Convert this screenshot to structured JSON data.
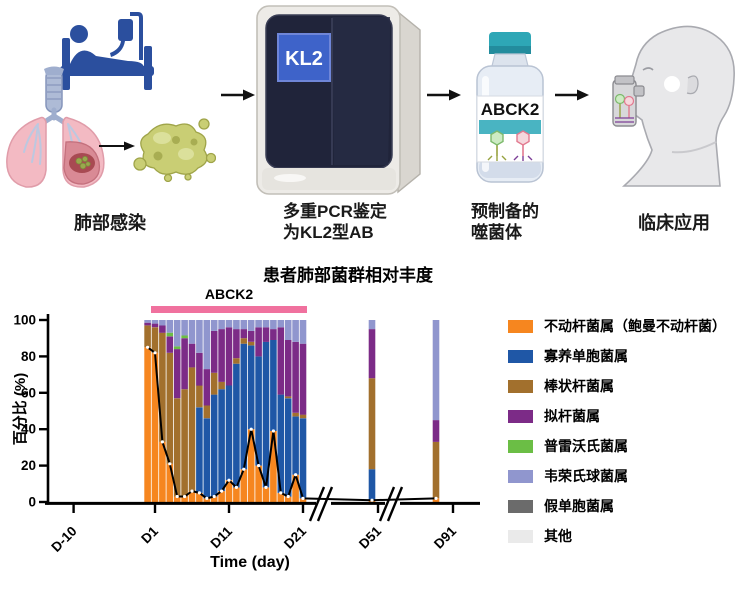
{
  "workflow": {
    "step1_caption": "肺部感染",
    "step2_caption_line1": "多重PCR鉴定",
    "step2_caption_line2": "为KL2型AB",
    "machine_screen_text": "KL2",
    "step3_caption_line1": "预制备的",
    "step3_caption_line2": "噬菌体",
    "vial_label_text": "ABCK2",
    "step4_caption": "临床应用"
  },
  "chart_data": {
    "type": "bar",
    "subtype": "stacked-percent-bars-with-line-overlay",
    "title": "患者肺部菌群相对丰度",
    "xlabel": "Time (day)",
    "ylabel": "百分比 (%)",
    "ylim": [
      0,
      100
    ],
    "yticks": [
      0,
      20,
      40,
      60,
      80,
      100
    ],
    "xticks": [
      {
        "label": "D-10",
        "day": -10
      },
      {
        "label": "D1",
        "day": 1
      },
      {
        "label": "D11",
        "day": 11
      },
      {
        "label": "D21",
        "day": 21
      },
      {
        "label": "D51",
        "day": 51
      },
      {
        "label": "D91",
        "day": 91
      }
    ],
    "axis_breaks": [
      {
        "between": [
          "D21",
          "D51"
        ]
      },
      {
        "between": [
          "D51",
          "D91"
        ]
      }
    ],
    "grid": false,
    "legend_position": "right",
    "treatment_band": {
      "label": "ABCK2",
      "color": "#F0719E",
      "start_day": 1,
      "end_day": 21
    },
    "line_overlay": {
      "follows_series": "acinetobacter",
      "color": "#000000",
      "marker_color": "#FFFFFF"
    },
    "series": [
      {
        "key": "acinetobacter",
        "label": "不动杆菌属（鲍曼不动杆菌）",
        "color": "#F6861F"
      },
      {
        "key": "stenotrophomonas",
        "label": "寡养单胞菌属",
        "color": "#1F57A6"
      },
      {
        "key": "corynebacterium",
        "label": "棒状杆菌属",
        "color": "#A2702D"
      },
      {
        "key": "bacteroides",
        "label": "拟杆菌属",
        "color": "#7C2B87"
      },
      {
        "key": "prevotella",
        "label": "普雷沃氏菌属",
        "color": "#6BBE45"
      },
      {
        "key": "veillonella",
        "label": "韦荣氏球菌属",
        "color": "#9096CE"
      },
      {
        "key": "pseudomonas",
        "label": "假单胞菌属",
        "color": "#6B6B6B"
      },
      {
        "key": "other",
        "label": "其他",
        "color": "#EAEAEA"
      }
    ],
    "bars": [
      {
        "day": 0,
        "stack": [
          85,
          0,
          12,
          1.5,
          0,
          1.5,
          0,
          0
        ]
      },
      {
        "day": 1,
        "stack": [
          82,
          0,
          14,
          2,
          0,
          2,
          0,
          0
        ]
      },
      {
        "day": 2,
        "stack": [
          33,
          0,
          60,
          4,
          0,
          3,
          0,
          0
        ]
      },
      {
        "day": 3,
        "stack": [
          21,
          0,
          61,
          9,
          2,
          7,
          0,
          0
        ]
      },
      {
        "day": 4,
        "stack": [
          3,
          0,
          54,
          27,
          1.5,
          14.5,
          0,
          0
        ]
      },
      {
        "day": 5,
        "stack": [
          3,
          0,
          59,
          28,
          1.5,
          8.5,
          0,
          0
        ]
      },
      {
        "day": 6,
        "stack": [
          6,
          0,
          68,
          13,
          0,
          13,
          0,
          0
        ]
      },
      {
        "day": 7,
        "stack": [
          5,
          47,
          12,
          18,
          0,
          18,
          0,
          0
        ]
      },
      {
        "day": 8,
        "stack": [
          2,
          44,
          7,
          20,
          0,
          27,
          0,
          0
        ]
      },
      {
        "day": 9,
        "stack": [
          3,
          56,
          12,
          23,
          0,
          6,
          0,
          0
        ]
      },
      {
        "day": 10,
        "stack": [
          6,
          56,
          4,
          29,
          0,
          5,
          0,
          0
        ]
      },
      {
        "day": 11,
        "stack": [
          12,
          52,
          0,
          32,
          0,
          4,
          0,
          0
        ]
      },
      {
        "day": 12,
        "stack": [
          8,
          68,
          3,
          16,
          0,
          5,
          0,
          0
        ]
      },
      {
        "day": 13,
        "stack": [
          18,
          69,
          3,
          5,
          0,
          5,
          0,
          0
        ]
      },
      {
        "day": 14,
        "stack": [
          40,
          46,
          2,
          6,
          0,
          6,
          0,
          0
        ]
      },
      {
        "day": 15,
        "stack": [
          20,
          60,
          0,
          16,
          0,
          4,
          0,
          0
        ]
      },
      {
        "day": 16,
        "stack": [
          8,
          80,
          0,
          8,
          0,
          4,
          0,
          0
        ]
      },
      {
        "day": 17,
        "stack": [
          39,
          50,
          0,
          6,
          0,
          5,
          0,
          0
        ]
      },
      {
        "day": 18,
        "stack": [
          5,
          54,
          0,
          37,
          0,
          4,
          0,
          0
        ]
      },
      {
        "day": 19,
        "stack": [
          3,
          54,
          1,
          31,
          0,
          11,
          0,
          0
        ]
      },
      {
        "day": 20,
        "stack": [
          15,
          32,
          2,
          39,
          0,
          12,
          0,
          0
        ]
      },
      {
        "day": 21,
        "stack": [
          2,
          44,
          2,
          39,
          0,
          13,
          0,
          0
        ]
      },
      {
        "day": 51,
        "stack": [
          1,
          17,
          50,
          27,
          0,
          5,
          0,
          0
        ]
      },
      {
        "day": 91,
        "stack": [
          2,
          0,
          31,
          12,
          0,
          55,
          0,
          0
        ]
      }
    ]
  }
}
